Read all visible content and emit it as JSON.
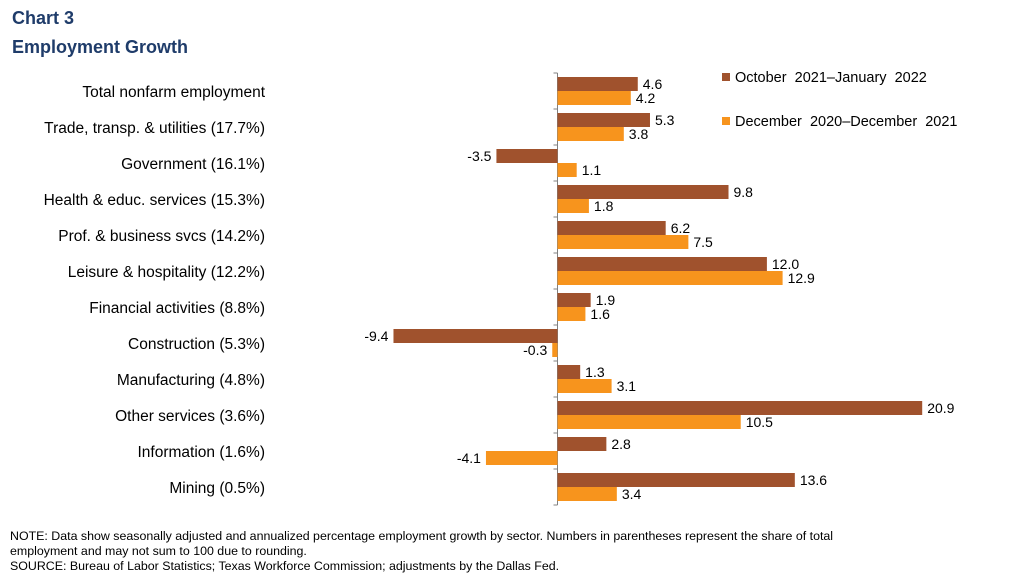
{
  "chart_data": {
    "type": "bar",
    "orientation": "horizontal",
    "title": "Chart 3",
    "subtitle": "Employment  Growth",
    "categories": [
      "Total nonfarm employment",
      "Trade, transp. & utilities (17.7%)",
      "Government (16.1%)",
      "Health & educ. services (15.3%)",
      "Prof. & business svcs (14.2%)",
      "Leisure & hospitality (12.2%)",
      "Financial activities (8.8%)",
      "Construction (5.3%)",
      "Manufacturing (4.8%)",
      "Other services (3.6%)",
      "Information (1.6%)",
      "Mining (0.5%)"
    ],
    "series": [
      {
        "name": "October  2021–January  2022",
        "color": "#a0522d",
        "values": [
          4.6,
          5.3,
          -3.5,
          9.8,
          6.2,
          12.0,
          1.9,
          -9.4,
          1.3,
          20.9,
          2.8,
          13.6
        ],
        "labels": [
          "4.6",
          "5.3",
          "-3.5",
          "9.8",
          "6.2",
          "12.0",
          "1.9",
          "-9.4",
          "1.3",
          "20.9",
          "2.8",
          "13.6"
        ]
      },
      {
        "name": "December  2020–December  2021",
        "color": "#f7941d",
        "values": [
          4.2,
          3.8,
          1.1,
          1.8,
          7.5,
          12.9,
          1.6,
          -0.3,
          3.1,
          10.5,
          -4.1,
          3.4
        ],
        "labels": [
          "4.2",
          "3.8",
          "1.1",
          "1.8",
          "7.5",
          "12.9",
          "1.6",
          "-0.3",
          "3.1",
          "10.5",
          "-4.1",
          "3.4"
        ]
      }
    ],
    "xlim": [
      -10,
      22
    ],
    "grid": false,
    "legend": "top-right",
    "xlabel": "",
    "ylabel": ""
  },
  "notes": {
    "note_line1": "NOTE:  Data  show  seasonally  adjusted  and  annualized  percentage  employment  growth  by  sector.  Numbers  in  parentheses  represent  the  share  of  total",
    "note_line2": "employment  and  may  not  sum  to  100  due  to  rounding.",
    "source": "SOURCE:  Bureau  of  Labor  Statistics;  Texas  Workforce  Commission;  adjustments  by  the  Dallas  Fed."
  }
}
